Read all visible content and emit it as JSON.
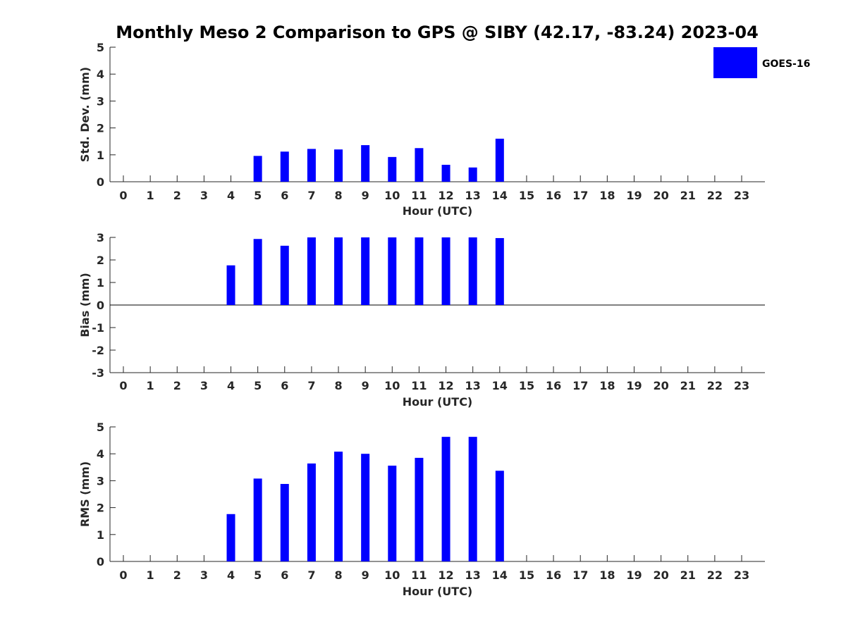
{
  "figure": {
    "title": "Monthly Meso 2 Comparison to GPS @ SIBY (42.17, -83.24) 2023-04"
  },
  "legend": {
    "label": "GOES-16",
    "color": "#0000ff",
    "placement": "top-right"
  },
  "chart_data": [
    {
      "type": "bar",
      "ylabel": "Std. Dev. (mm)",
      "xlabel": "Hour (UTC)",
      "ylim": [
        0,
        5
      ],
      "yticks": [
        0,
        1,
        2,
        3,
        4,
        5
      ],
      "x": [
        5,
        6,
        7,
        8,
        9,
        10,
        11,
        12,
        13,
        14
      ],
      "series": [
        {
          "name": "GOES-16",
          "values": [
            0.96,
            1.12,
            1.22,
            1.2,
            1.36,
            0.92,
            1.25,
            0.63,
            0.53,
            1.6
          ]
        }
      ]
    },
    {
      "type": "bar",
      "ylabel": "Bias (mm)",
      "xlabel": "Hour (UTC)",
      "ylim": [
        -3,
        3
      ],
      "yticks": [
        -3,
        -2,
        -1,
        0,
        1,
        2,
        3
      ],
      "zero_line": true,
      "x": [
        4,
        5,
        6,
        7,
        8,
        9,
        10,
        11,
        12,
        13,
        14
      ],
      "series": [
        {
          "name": "GOES-16",
          "values": [
            1.76,
            2.93,
            2.63,
            3.0,
            3.0,
            3.0,
            3.0,
            3.0,
            3.0,
            3.0,
            2.97
          ]
        }
      ]
    },
    {
      "type": "bar",
      "ylabel": "RMS (mm)",
      "xlabel": "Hour (UTC)",
      "ylim": [
        0,
        5
      ],
      "yticks": [
        0,
        1,
        2,
        3,
        4,
        5
      ],
      "x": [
        4,
        5,
        6,
        7,
        8,
        9,
        10,
        11,
        12,
        13,
        14
      ],
      "series": [
        {
          "name": "GOES-16",
          "values": [
            1.76,
            3.08,
            2.88,
            3.64,
            4.08,
            4.0,
            3.56,
            3.85,
            4.63,
            4.63,
            3.37
          ]
        }
      ]
    }
  ],
  "xticks": [
    "0",
    "1",
    "2",
    "3",
    "4",
    "5",
    "6",
    "7",
    "8",
    "9",
    "10",
    "11",
    "12",
    "13",
    "14",
    "15",
    "16",
    "17",
    "18",
    "19",
    "20",
    "21",
    "22",
    "23"
  ]
}
